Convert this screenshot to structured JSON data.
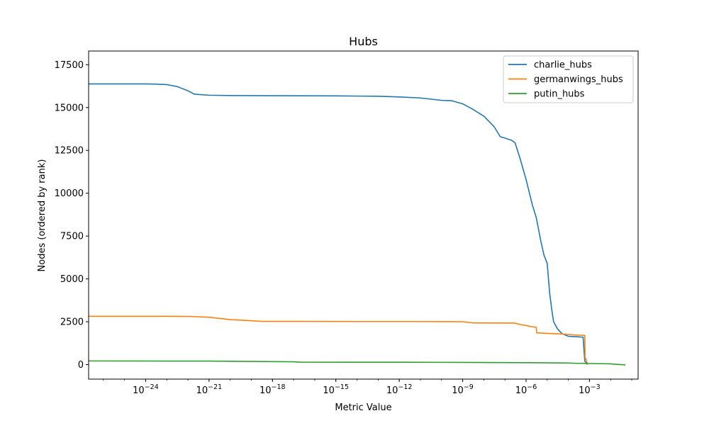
{
  "chart_data": {
    "type": "line",
    "title": "Hubs",
    "xlabel": "Metric Value",
    "ylabel": "Nodes (ordered by rank)",
    "x_scale": "log",
    "xlim": [
      2e-27,
      0.2
    ],
    "ylim": [
      -850,
      18300
    ],
    "x_ticks": [
      {
        "value": 1e-24,
        "base": "10",
        "exp": "−24"
      },
      {
        "value": 1e-21,
        "base": "10",
        "exp": "−21"
      },
      {
        "value": 1e-18,
        "base": "10",
        "exp": "−18"
      },
      {
        "value": 1e-15,
        "base": "10",
        "exp": "−15"
      },
      {
        "value": 1e-12,
        "base": "10",
        "exp": "−12"
      },
      {
        "value": 1e-09,
        "base": "10",
        "exp": "−9"
      },
      {
        "value": 1e-06,
        "base": "10",
        "exp": "−6"
      },
      {
        "value": 0.001,
        "base": "10",
        "exp": "−3"
      }
    ],
    "y_ticks": [
      0,
      2500,
      5000,
      7500,
      10000,
      12500,
      15000,
      17500
    ],
    "legend_position": "top-right",
    "grid": false,
    "series": [
      {
        "name": "charlie_hubs",
        "color": "#1f77b4",
        "points": [
          [
            2e-27,
            16380
          ],
          [
            1e-25,
            16380
          ],
          [
            1e-24,
            16380
          ],
          [
            3e-24,
            16370
          ],
          [
            1e-23,
            16340
          ],
          [
            3e-23,
            16230
          ],
          [
            1e-22,
            15980
          ],
          [
            2e-22,
            15780
          ],
          [
            1e-21,
            15720
          ],
          [
            1e-20,
            15700
          ],
          [
            1e-18,
            15690
          ],
          [
            1e-15,
            15680
          ],
          [
            1e-13,
            15660
          ],
          [
            1e-12,
            15620
          ],
          [
            1e-11,
            15560
          ],
          [
            1e-10,
            15420
          ],
          [
            3e-10,
            15400
          ],
          [
            1e-09,
            15220
          ],
          [
            3e-09,
            14900
          ],
          [
            1e-08,
            14500
          ],
          [
            3e-08,
            13900
          ],
          [
            6e-08,
            13300
          ],
          [
            2e-07,
            13100
          ],
          [
            3e-07,
            12950
          ],
          [
            5e-07,
            12100
          ],
          [
            1e-06,
            10800
          ],
          [
            2e-06,
            9300
          ],
          [
            3e-06,
            8600
          ],
          [
            5e-06,
            7200
          ],
          [
            7e-06,
            6400
          ],
          [
            1e-05,
            5900
          ],
          [
            1.3e-05,
            4200
          ],
          [
            1.6e-05,
            3300
          ],
          [
            2e-05,
            2500
          ],
          [
            3e-05,
            2100
          ],
          [
            5e-05,
            1800
          ],
          [
            0.0001,
            1650
          ],
          [
            0.0003,
            1620
          ],
          [
            0.0005,
            1600
          ],
          [
            0.0006,
            200
          ],
          [
            0.0008,
            0
          ]
        ]
      },
      {
        "name": "germanwings_hubs",
        "color": "#ff7f0e",
        "points": [
          [
            2e-27,
            2820
          ],
          [
            1e-25,
            2820
          ],
          [
            1e-23,
            2820
          ],
          [
            1e-22,
            2810
          ],
          [
            1e-21,
            2760
          ],
          [
            1e-20,
            2620
          ],
          [
            1e-19,
            2560
          ],
          [
            3e-19,
            2520
          ],
          [
            1e-17,
            2520
          ],
          [
            1e-14,
            2510
          ],
          [
            1e-11,
            2510
          ],
          [
            1e-09,
            2500
          ],
          [
            3e-09,
            2430
          ],
          [
            3e-07,
            2420
          ],
          [
            5e-07,
            2340
          ],
          [
            1e-06,
            2280
          ],
          [
            2e-06,
            2200
          ],
          [
            3e-06,
            2180
          ],
          [
            3.2e-06,
            1850
          ],
          [
            1e-05,
            1820
          ],
          [
            5e-05,
            1780
          ],
          [
            0.0002,
            1730
          ],
          [
            0.0006,
            1700
          ],
          [
            0.00062,
            400
          ],
          [
            0.0007,
            300
          ],
          [
            0.0008,
            0
          ]
        ]
      },
      {
        "name": "putin_hubs",
        "color": "#2ca02c",
        "points": [
          [
            2e-27,
            210
          ],
          [
            1e-21,
            200
          ],
          [
            1e-19,
            180
          ],
          [
            1e-17,
            160
          ],
          [
            2e-17,
            140
          ],
          [
            1e-12,
            135
          ],
          [
            1e-09,
            125
          ],
          [
            1e-06,
            110
          ],
          [
            0.0001,
            90
          ],
          [
            0.0003,
            70
          ],
          [
            0.001,
            60
          ],
          [
            0.01,
            40
          ],
          [
            0.015,
            20
          ],
          [
            0.05,
            -20
          ]
        ]
      }
    ]
  }
}
